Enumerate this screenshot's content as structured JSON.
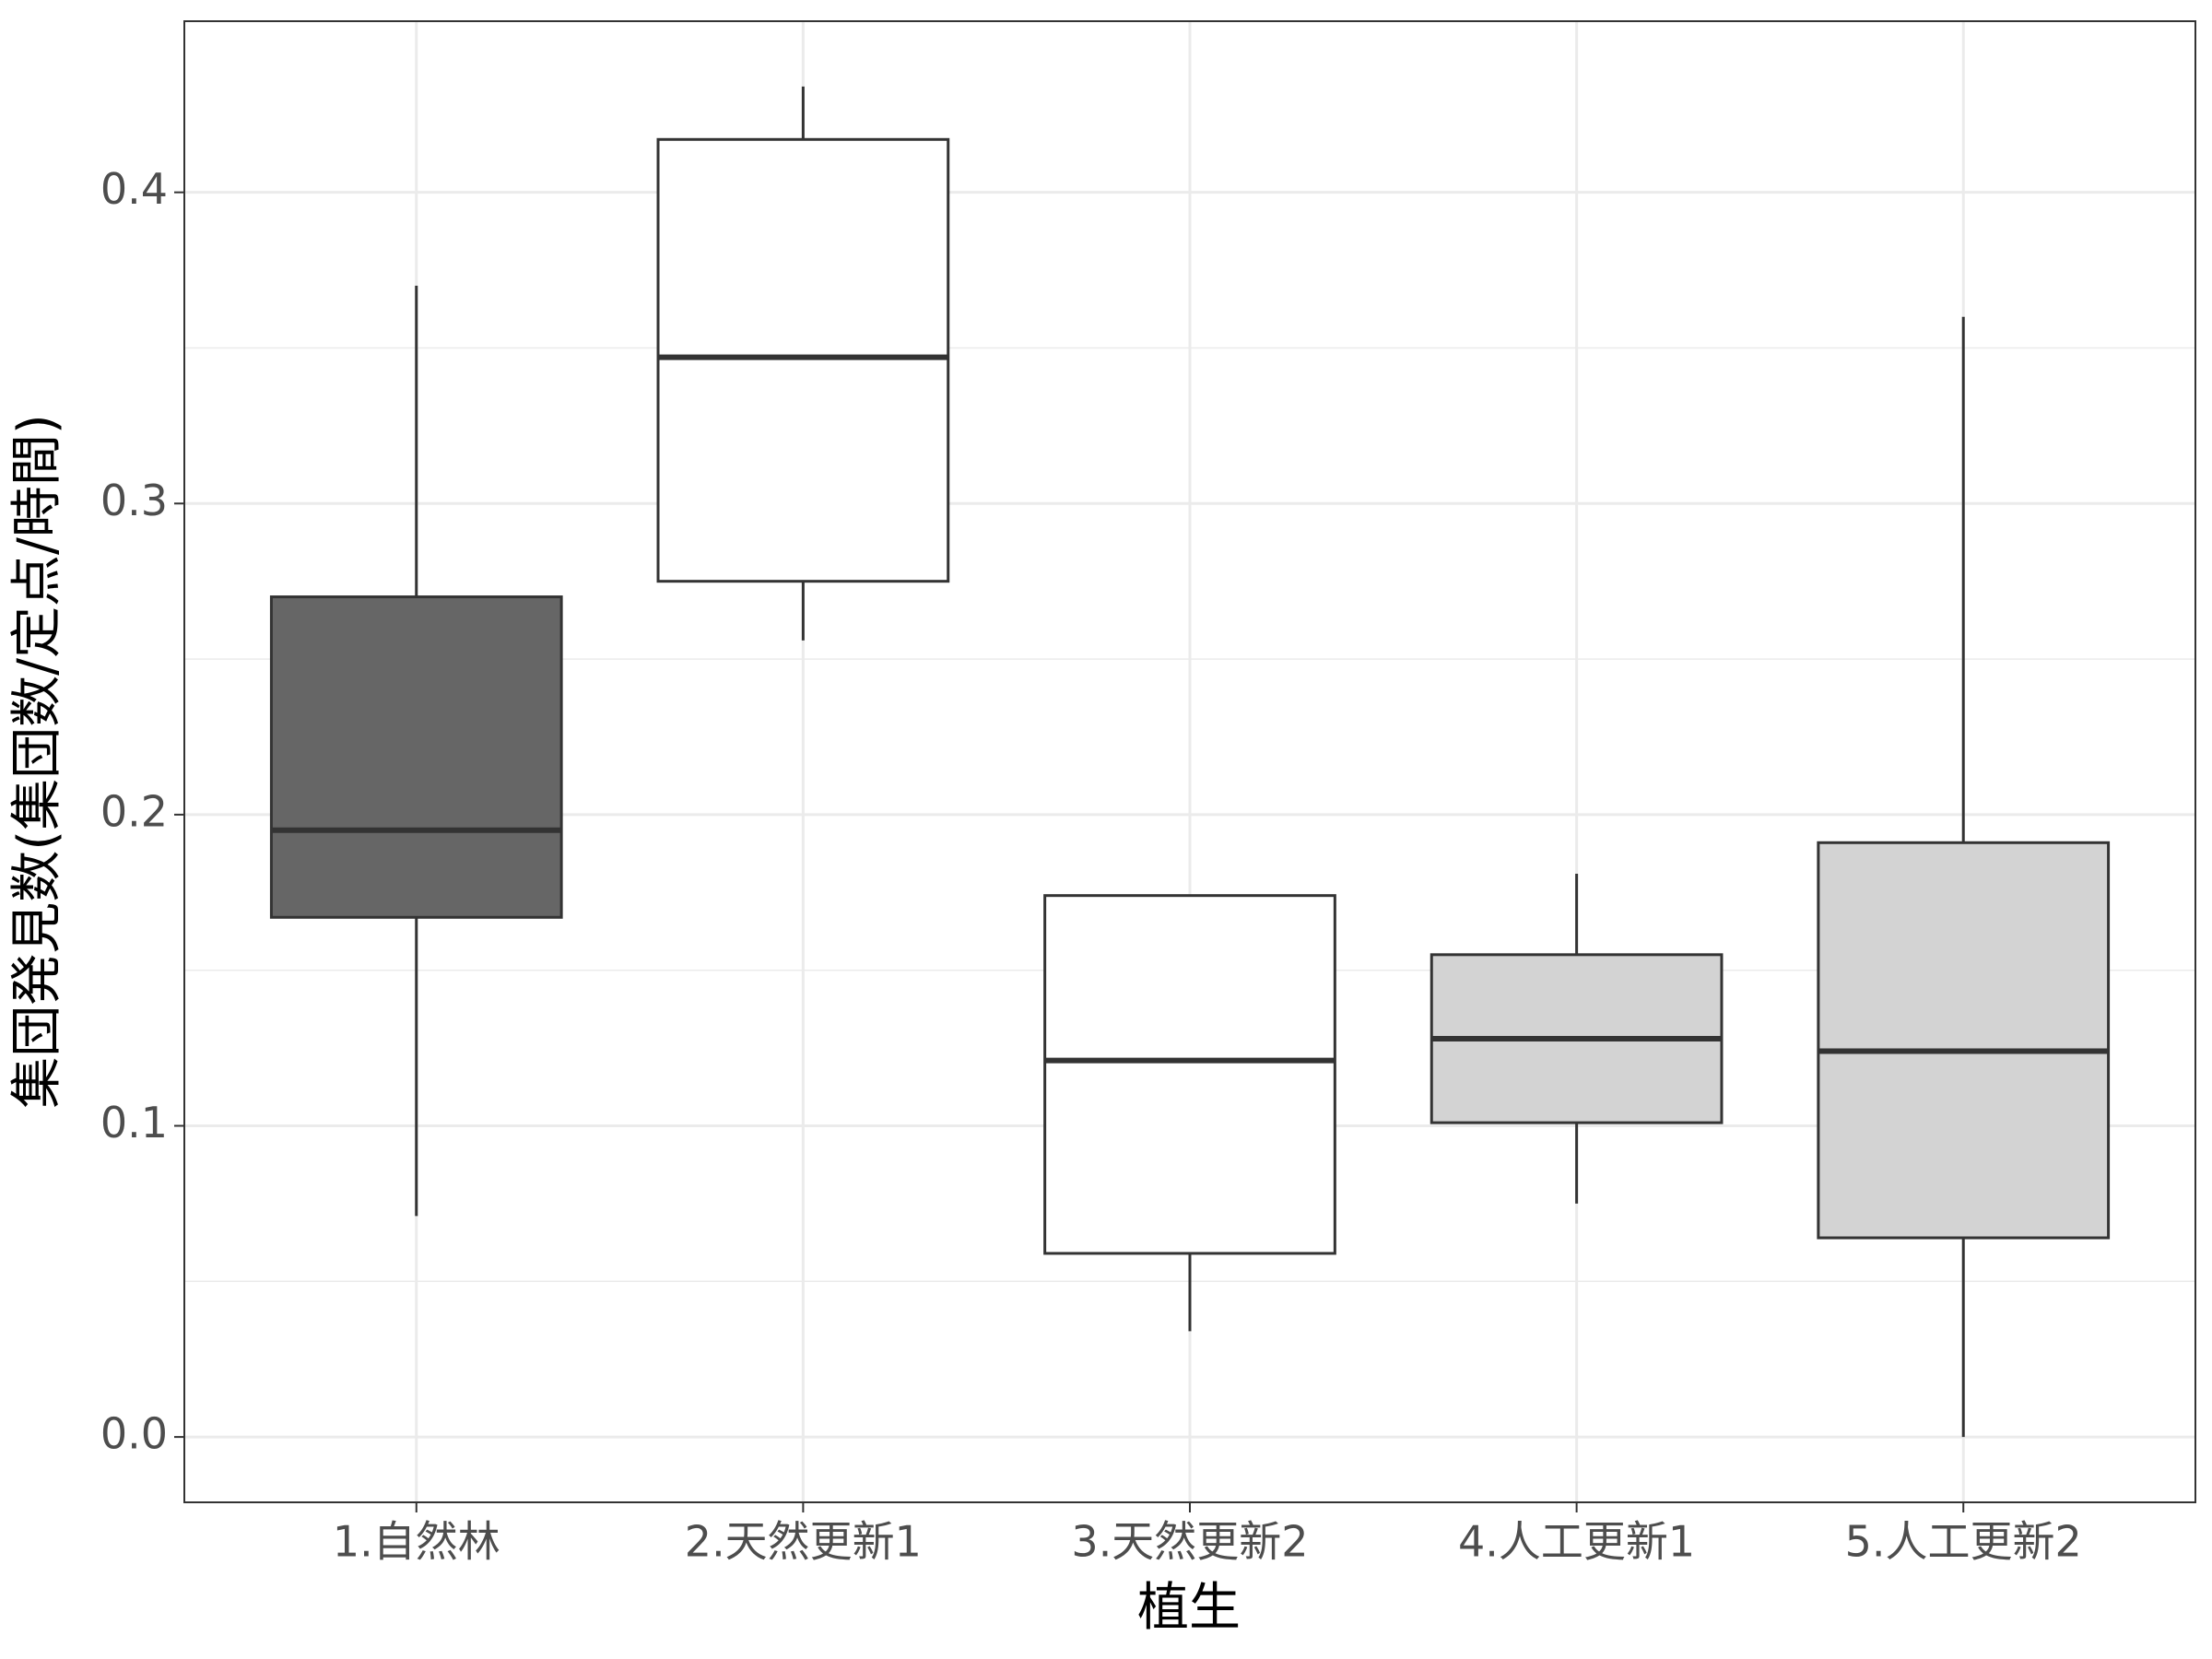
{
  "chart_data": {
    "type": "boxplot",
    "x_label": "植生",
    "y_label": "集団発見数(集団数/定点/時間)",
    "categories": [
      "1.自然林",
      "2.天然更新1",
      "3.天然更新2",
      "4.人工更新1",
      "5.人工更新2"
    ],
    "boxes": [
      {
        "min": 0.071,
        "q1": 0.167,
        "median": 0.195,
        "q3": 0.27,
        "max": 0.37,
        "color": "#666666"
      },
      {
        "min": 0.256,
        "q1": 0.275,
        "median": 0.347,
        "q3": 0.417,
        "max": 0.434,
        "color": "#ffffff"
      },
      {
        "min": 0.034,
        "q1": 0.059,
        "median": 0.121,
        "q3": 0.174,
        "max": 0.174,
        "color": "#ffffff"
      },
      {
        "min": 0.075,
        "q1": 0.101,
        "median": 0.128,
        "q3": 0.155,
        "max": 0.181,
        "color": "#d3d3d3"
      },
      {
        "min": 0.0,
        "q1": 0.064,
        "median": 0.124,
        "q3": 0.191,
        "max": 0.36,
        "color": "#d3d3d3"
      }
    ],
    "ylim": [
      -0.021,
      0.455
    ],
    "yticks": [
      {
        "value": 0,
        "label": "0.0"
      },
      0.1,
      0.2,
      0.3,
      0.4
    ],
    "grid": true
  }
}
